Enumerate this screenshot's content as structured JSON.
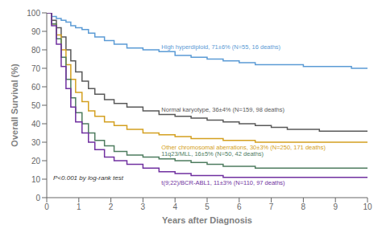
{
  "chart_data": {
    "type": "line",
    "xlabel": "Years after Diagnosis",
    "ylabel": "Overall Survival (%)",
    "annotation": "P<0.001 by log-rank test",
    "line_style": "step",
    "grid": false,
    "xlim": [
      0,
      10
    ],
    "ylim": [
      0,
      100
    ],
    "xticks": [
      0,
      1,
      2,
      3,
      4,
      5,
      6,
      7,
      8,
      9,
      10
    ],
    "yticks": [
      0,
      10,
      20,
      30,
      40,
      50,
      60,
      70,
      80,
      90,
      100
    ],
    "x": [
      0,
      0.15,
      0.3,
      0.45,
      0.6,
      0.75,
      0.9,
      1.1,
      1.3,
      1.5,
      1.8,
      2.1,
      2.5,
      3.0,
      3.5,
      4.0,
      4.5,
      5.0,
      5.5,
      6.0,
      6.5,
      7.0,
      7.5,
      8.0,
      8.5,
      9.0,
      9.5,
      10.0
    ],
    "series": [
      {
        "name": "High hyperdiploid, 71±6% (N=55, 16 deaths)",
        "color": "#5b9bd5",
        "values": [
          100,
          98,
          97,
          96,
          95,
          93,
          92,
          91,
          89,
          87,
          85,
          83,
          81,
          80,
          79,
          77,
          76,
          75,
          74,
          73,
          72,
          72,
          72,
          71,
          71,
          71,
          70,
          70
        ]
      },
      {
        "name": "Normal karyotype, 36±4% (N=159, 98 deaths)",
        "color": "#595959",
        "values": [
          100,
          96,
          92,
          87,
          80,
          74,
          68,
          63,
          59,
          56,
          53,
          51,
          49,
          47,
          45,
          44,
          43,
          42,
          41,
          40,
          39,
          38,
          37,
          37,
          36,
          36,
          36,
          36
        ]
      },
      {
        "name": "Other chromosomal aberrations, 30±3% (N=250, 171 deaths)",
        "color": "#d4a020",
        "values": [
          100,
          94,
          88,
          80,
          72,
          64,
          57,
          52,
          47,
          44,
          41,
          39,
          37,
          35,
          34,
          33,
          32,
          32,
          31,
          31,
          30,
          30,
          30,
          30,
          30,
          30,
          30,
          30
        ]
      },
      {
        "name": "11q23/MLL, 16±5% (N=50, 42 deaths)",
        "color": "#4e7c5f",
        "values": [
          100,
          94,
          86,
          76,
          64,
          54,
          46,
          40,
          35,
          31,
          28,
          25,
          23,
          22,
          21,
          20,
          19,
          18,
          17,
          17,
          16,
          16,
          16,
          16,
          16,
          16,
          16,
          16
        ]
      },
      {
        "name": "t(9;22)/BCR-ABL1, 11±3% (N=110, 97 deaths)",
        "color": "#7030a0",
        "values": [
          100,
          93,
          83,
          71,
          59,
          49,
          41,
          35,
          30,
          26,
          22,
          20,
          18,
          16,
          14,
          13,
          12,
          12,
          11,
          11,
          11,
          11,
          11,
          11,
          11,
          11,
          11,
          11
        ]
      }
    ]
  }
}
